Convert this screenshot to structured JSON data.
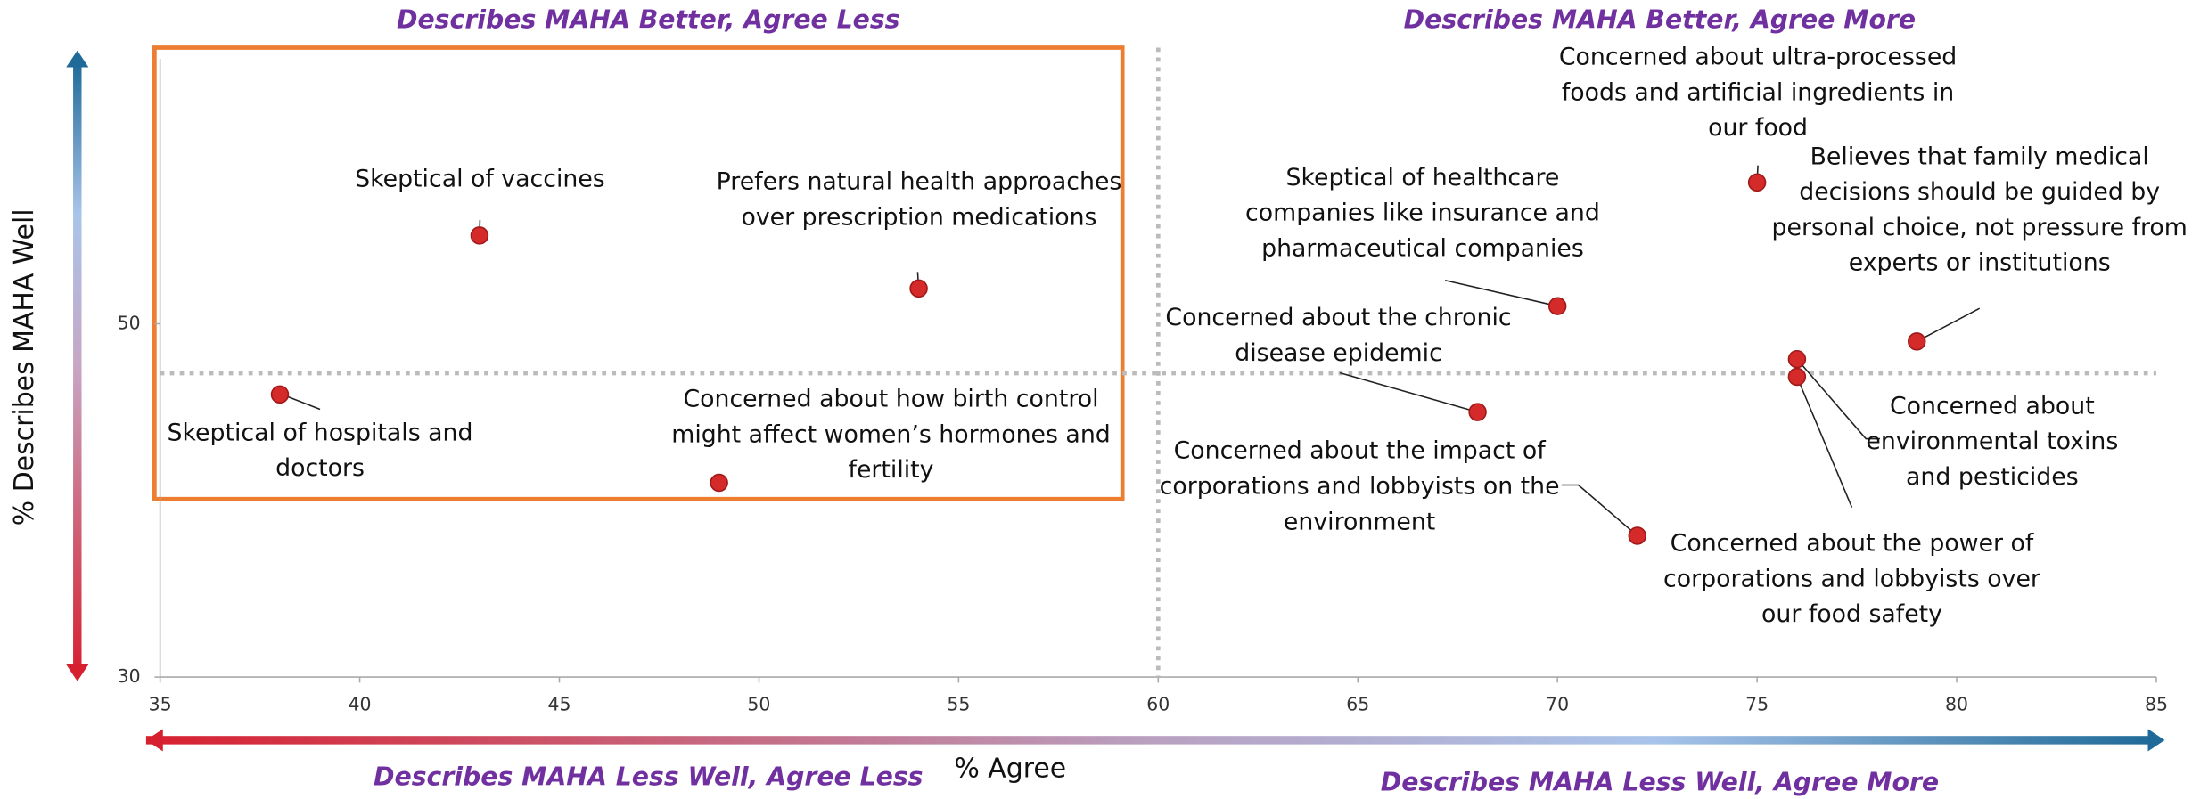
{
  "chart_data": {
    "type": "scatter",
    "x_label": "% Agree",
    "y_label": "% Describes MAHA Well",
    "x": [
      43,
      54,
      38,
      49,
      70,
      68,
      72,
      75,
      79,
      76,
      76
    ],
    "values": [
      55,
      52,
      46,
      41,
      51,
      45,
      38,
      58,
      49,
      48,
      47
    ],
    "point_labels": [
      [
        "Skeptical of vaccines"
      ],
      [
        "Prefers natural health approaches",
        "over prescription medications"
      ],
      [
        "Skeptical of hospitals and",
        "doctors"
      ],
      [
        "Concerned about how birth control",
        "might affect women’s hormones and",
        "fertility"
      ],
      [
        "Skeptical of healthcare",
        "companies like insurance and",
        "pharmaceutical companies"
      ],
      [
        "Concerned about the chronic",
        "disease epidemic"
      ],
      [
        "Concerned about the impact of",
        "corporations and lobbyists on the",
        "environment"
      ],
      [
        "Concerned about ultra-processed",
        "foods and artificial ingredients in",
        "our food"
      ],
      [
        "Believes that family medical",
        "decisions should be guided by",
        "personal choice, not pressure from",
        "experts or institutions"
      ],
      [
        "Concerned about",
        "environmental toxins",
        "and pesticides"
      ],
      [
        "Concerned about the power of",
        "corporations and lobbyists over",
        "our food safety"
      ]
    ],
    "color": "#d42a2a",
    "xlim": [
      35,
      85
    ],
    "xticks": [
      35,
      40,
      45,
      50,
      55,
      60,
      65,
      70,
      75,
      80,
      85
    ],
    "ylim": [
      30,
      65
    ],
    "yticks": [
      30,
      50
    ],
    "reference_lines": {
      "x": 60,
      "y": 47.2
    },
    "quadrant_labels": {
      "top_left": "Describes MAHA Better, Agree Less",
      "top_right": "Describes MAHA Better, Agree More",
      "bottom_left": "Describes MAHA Less Well, Agree Less",
      "bottom_right": "Describes MAHA Less Well, Agree More"
    }
  }
}
